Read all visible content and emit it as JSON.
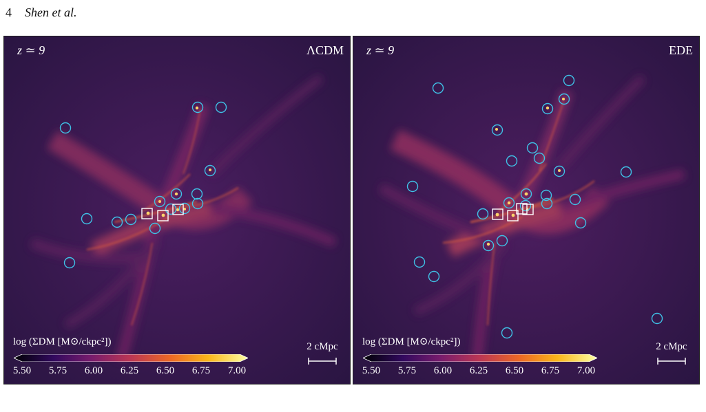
{
  "header": {
    "page_number": "4",
    "authors": "Shen et al."
  },
  "colorbar": {
    "colormap": "inferno",
    "colors": [
      "#000004",
      "#320a5e",
      "#781c6d",
      "#bc3754",
      "#ed6925",
      "#fbb61a",
      "#fcffa4"
    ],
    "ticks": [
      "5.50",
      "5.75",
      "6.00",
      "6.25",
      "6.50",
      "6.75",
      "7.00"
    ]
  },
  "marker_colors": {
    "circle": "#3fc1e6",
    "square": "#ffffff"
  },
  "panels": [
    {
      "redshift": "z ≃ 9",
      "model": "ΛCDM",
      "colorbar_label": "log (ΣDM [M⊙/ckpc²])",
      "scale_bar": "2 cMpc"
    },
    {
      "redshift": "z ≃ 9",
      "model": "EDE",
      "colorbar_label": "log (ΣDM [M⊙/ckpc²])",
      "scale_bar": "2 cMpc"
    }
  ]
}
